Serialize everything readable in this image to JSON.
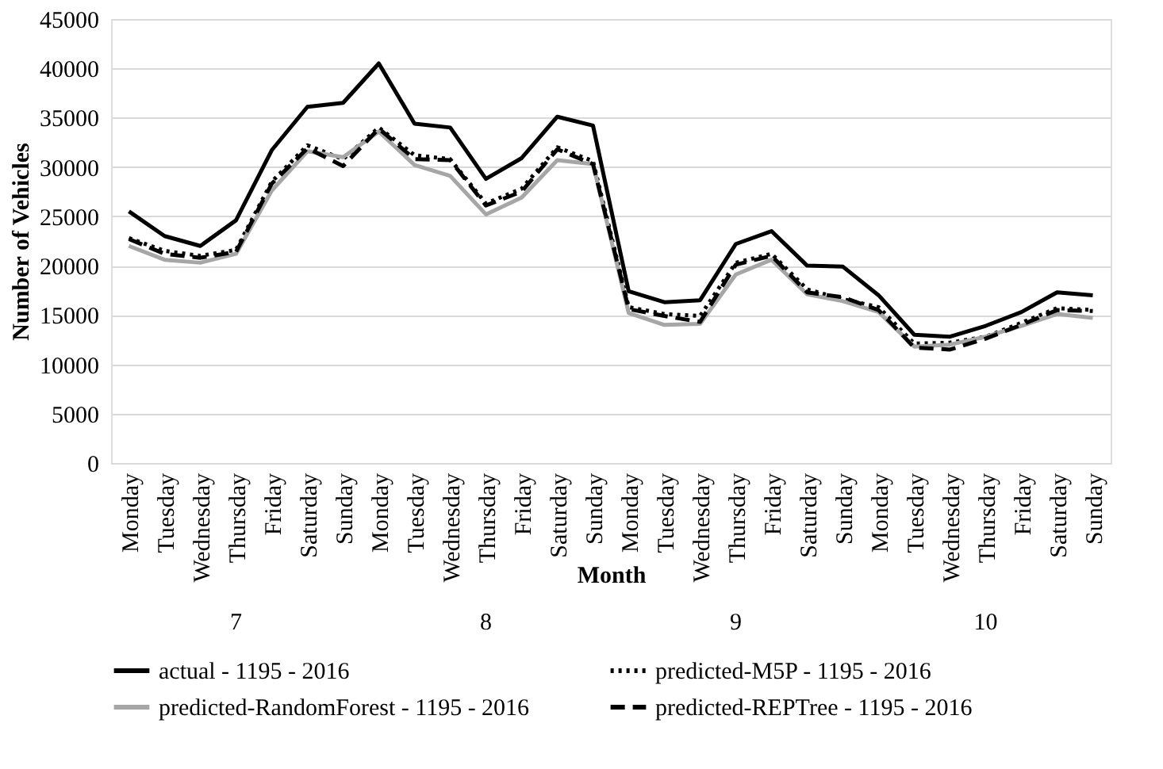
{
  "chart_data": {
    "type": "line",
    "xlabel": "Month",
    "ylabel": "Number of Vehicles",
    "categories": [
      "Monday",
      "Tuesday",
      "Wednesday",
      "Thursday",
      "Friday",
      "Saturday",
      "Sunday",
      "Monday",
      "Tuesday",
      "Wednesday",
      "Thursday",
      "Friday",
      "Saturday",
      "Sunday",
      "Monday",
      "Tuesday",
      "Wednesday",
      "Thursday",
      "Friday",
      "Saturday",
      "Sunday",
      "Monday",
      "Tuesday",
      "Wednesday",
      "Thursday",
      "Friday",
      "Saturday",
      "Sunday"
    ],
    "annotations": [
      "7",
      "8",
      "9",
      "10"
    ],
    "series": [
      {
        "name": "actual  - 1195 - 2016",
        "color": "#000000",
        "line_style": "solid",
        "values": [
          25500,
          23000,
          22000,
          24600,
          31700,
          36100,
          36500,
          40500,
          34400,
          34000,
          28800,
          30900,
          35100,
          34200,
          17400,
          16300,
          16500,
          22200,
          23500,
          20000,
          19900,
          17000,
          13000,
          12800,
          13900,
          15300,
          17300,
          17000
        ]
      },
      {
        "name": "predicted-M5P  - 1195 - 2016",
        "color": "#000000",
        "line_style": "dotted",
        "values": [
          22800,
          21500,
          21000,
          21600,
          28500,
          32200,
          30800,
          34000,
          31200,
          30800,
          26300,
          27800,
          32000,
          30600,
          15800,
          15100,
          14900,
          20300,
          21200,
          17600,
          16600,
          15800,
          12100,
          12200,
          12800,
          14200,
          15700,
          15500
        ]
      },
      {
        "name": "predicted-RandomForest  - 1195 - 2016",
        "color": "#a6a6a6",
        "line_style": "solid",
        "values": [
          22000,
          20600,
          20300,
          21200,
          27600,
          31600,
          31000,
          33600,
          30200,
          29100,
          25200,
          26900,
          30700,
          30300,
          15200,
          14000,
          14100,
          19100,
          20600,
          17100,
          16400,
          15300,
          11800,
          12000,
          12800,
          13900,
          15100,
          14700
        ]
      },
      {
        "name": "predicted-REPTree  - 1195 - 2016",
        "color": "#000000",
        "line_style": "dashed",
        "values": [
          22700,
          21200,
          20800,
          21400,
          28300,
          31900,
          30100,
          33900,
          30800,
          30700,
          26100,
          27500,
          31800,
          30300,
          15600,
          14900,
          14300,
          20100,
          21000,
          17300,
          16800,
          15500,
          11700,
          11500,
          12600,
          14000,
          15500,
          15400
        ]
      }
    ],
    "ylim": [
      0,
      45000
    ],
    "yticks": [
      0,
      5000,
      10000,
      15000,
      20000,
      25000,
      30000,
      35000,
      40000,
      45000
    ],
    "grid": "y",
    "legend": "bottom"
  }
}
